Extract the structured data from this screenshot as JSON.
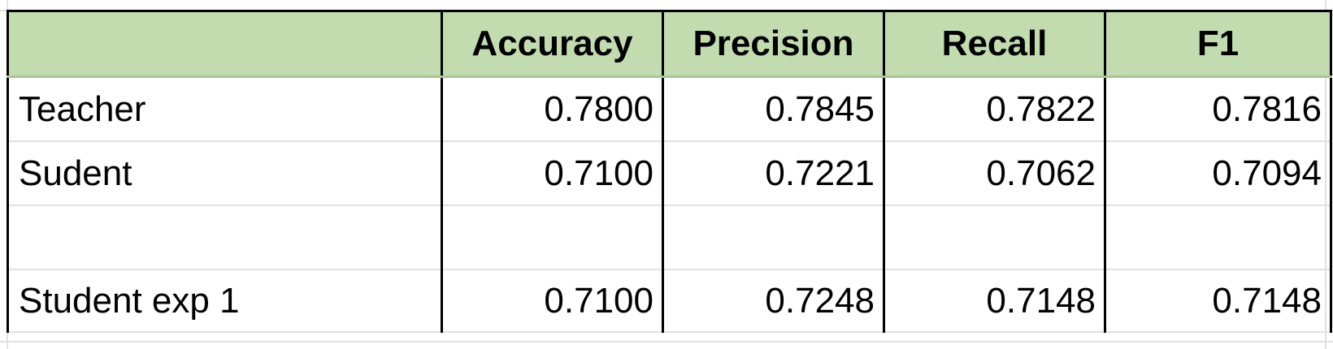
{
  "table": {
    "columns": [
      "",
      "Accuracy",
      "Precision",
      "Recall",
      "F1"
    ],
    "rows": [
      {
        "label": "Teacher",
        "accuracy": "0.7800",
        "precision": "0.7845",
        "recall": "0.7822",
        "f1": "0.7816"
      },
      {
        "label": "Sudent",
        "accuracy": "0.7100",
        "precision": "0.7221",
        "recall": "0.7062",
        "f1": "0.7094"
      },
      {
        "label": "",
        "accuracy": "",
        "precision": "",
        "recall": "",
        "f1": ""
      },
      {
        "label": "Student exp 1",
        "accuracy": "0.7100",
        "precision": "0.7248",
        "recall": "0.7148",
        "f1": "0.7148"
      }
    ]
  },
  "colors": {
    "header_fill": "#c2dcb0",
    "gridline": "#e2e2e2",
    "border": "#000000"
  }
}
